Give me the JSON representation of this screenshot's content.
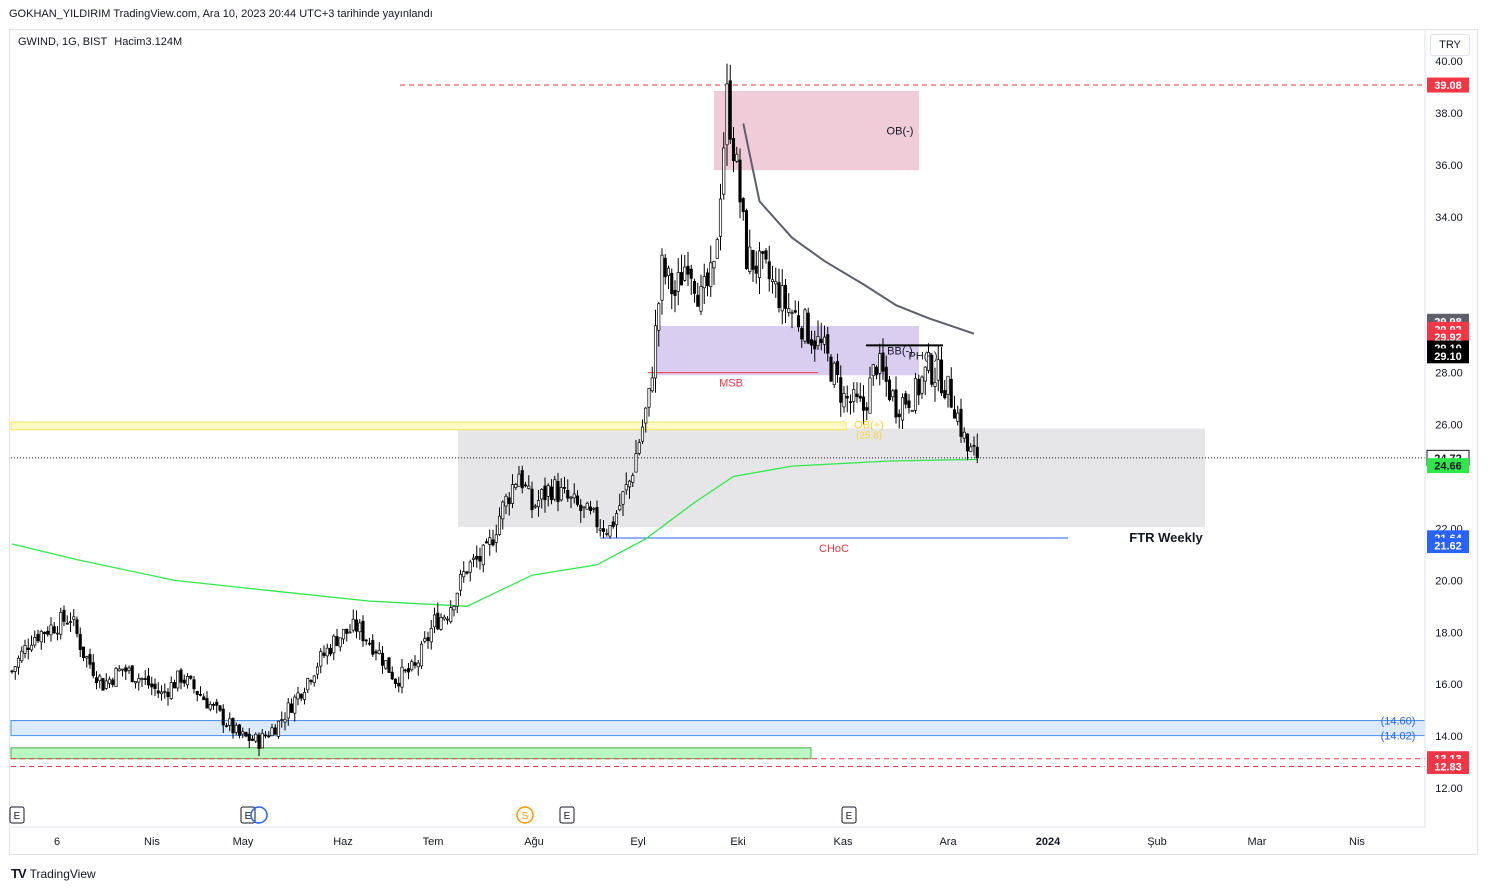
{
  "header": {
    "published_line": "GOKHAN_YILDIRIM TradingView.com, Ara 10, 2023 20:44 UTC+3 tarihinde yayınlandı"
  },
  "legend": {
    "symbol": "GWIND, 1G, BIST",
    "volume": "Hacim3.124M"
  },
  "currency": "TRY",
  "footer": {
    "brand": "TradingView"
  },
  "colors": {
    "up": "#ffffff",
    "down": "#000000",
    "wick": "#000000",
    "ma_fast": "#5d606b",
    "ma_slow": "#2ee84b",
    "ob": "#eec5d4",
    "bb": "#d5c8ee",
    "ftr": "#e3e3e5",
    "resistance": "#f23645",
    "support_band": "#dbeafc",
    "support_green": "#b9f6c1"
  },
  "chart_data": {
    "type": "candlestick",
    "title": "GWIND, 1G, BIST",
    "ylim": [
      10.5,
      41.2
    ],
    "y_ticks": [
      "12.00",
      "14.00",
      "16.00",
      "18.00",
      "20.00",
      "22.00",
      "26.00",
      "28.00",
      "34.00",
      "36.00",
      "38.00",
      "40.00"
    ],
    "x_labels": [
      "6",
      "Nis",
      "May",
      "Haz",
      "Tem",
      "Ağu",
      "Eyl",
      "Eki",
      "Kas",
      "Ara",
      "2024",
      "Şub",
      "Mar",
      "Nis"
    ],
    "earnings_markers": [
      "E",
      "E",
      "E",
      "E"
    ],
    "dividend_marker": "S",
    "close_path": [
      {
        "i": 0,
        "c": 16.5
      },
      {
        "i": 6,
        "c": 17.8
      },
      {
        "i": 12,
        "c": 18.2
      },
      {
        "i": 18,
        "c": 18.6
      },
      {
        "i": 22,
        "c": 17.2
      },
      {
        "i": 28,
        "c": 16.0
      },
      {
        "i": 34,
        "c": 16.6
      },
      {
        "i": 40,
        "c": 16.2
      },
      {
        "i": 46,
        "c": 15.6
      },
      {
        "i": 52,
        "c": 16.3
      },
      {
        "i": 58,
        "c": 15.6
      },
      {
        "i": 64,
        "c": 14.8
      },
      {
        "i": 70,
        "c": 14.0
      },
      {
        "i": 76,
        "c": 13.8
      },
      {
        "i": 82,
        "c": 14.5
      },
      {
        "i": 88,
        "c": 15.6
      },
      {
        "i": 94,
        "c": 16.8
      },
      {
        "i": 100,
        "c": 17.8
      },
      {
        "i": 106,
        "c": 18.2
      },
      {
        "i": 112,
        "c": 17.4
      },
      {
        "i": 118,
        "c": 16.2
      },
      {
        "i": 124,
        "c": 16.6
      },
      {
        "i": 130,
        "c": 18.4
      },
      {
        "i": 134,
        "c": 18.8
      },
      {
        "i": 140,
        "c": 20.5
      },
      {
        "i": 146,
        "c": 21.0
      },
      {
        "i": 150,
        "c": 22.5
      },
      {
        "i": 156,
        "c": 24.2
      },
      {
        "i": 160,
        "c": 22.8
      },
      {
        "i": 166,
        "c": 23.6
      },
      {
        "i": 172,
        "c": 23.0
      },
      {
        "i": 178,
        "c": 22.4
      },
      {
        "i": 184,
        "c": 22.0
      },
      {
        "i": 190,
        "c": 23.8
      },
      {
        "i": 196,
        "c": 27.0
      },
      {
        "i": 200,
        "c": 32.0
      },
      {
        "i": 204,
        "c": 31.0
      },
      {
        "i": 208,
        "c": 32.5
      },
      {
        "i": 212,
        "c": 30.8
      },
      {
        "i": 216,
        "c": 31.8
      },
      {
        "i": 220,
        "c": 38.6
      },
      {
        "i": 223,
        "c": 35.8
      },
      {
        "i": 226,
        "c": 32.5
      },
      {
        "i": 232,
        "c": 31.8
      },
      {
        "i": 238,
        "c": 30.6
      },
      {
        "i": 244,
        "c": 29.8
      },
      {
        "i": 250,
        "c": 28.8
      },
      {
        "i": 256,
        "c": 27.0
      },
      {
        "i": 262,
        "c": 26.6
      },
      {
        "i": 266,
        "c": 28.4
      },
      {
        "i": 272,
        "c": 26.8
      },
      {
        "i": 278,
        "c": 27.2
      },
      {
        "i": 282,
        "c": 28.2
      },
      {
        "i": 286,
        "c": 27.8
      },
      {
        "i": 290,
        "c": 26.8
      },
      {
        "i": 294,
        "c": 25.0
      },
      {
        "i": 297,
        "c": 24.72
      }
    ],
    "ma_fast": [
      {
        "i": 225,
        "v": 37.6
      },
      {
        "i": 230,
        "v": 34.6
      },
      {
        "i": 240,
        "v": 33.2
      },
      {
        "i": 250,
        "v": 32.3
      },
      {
        "i": 262,
        "v": 31.4
      },
      {
        "i": 272,
        "v": 30.6
      },
      {
        "i": 282,
        "v": 30.1
      },
      {
        "i": 296,
        "v": 29.5
      }
    ],
    "ma_slow": [
      {
        "i": 0,
        "v": 21.4
      },
      {
        "i": 20,
        "v": 20.8
      },
      {
        "i": 50,
        "v": 20.0
      },
      {
        "i": 80,
        "v": 19.6
      },
      {
        "i": 110,
        "v": 19.2
      },
      {
        "i": 140,
        "v": 19.0
      },
      {
        "i": 160,
        "v": 20.2
      },
      {
        "i": 180,
        "v": 20.6
      },
      {
        "i": 195,
        "v": 21.6
      },
      {
        "i": 210,
        "v": 23.0
      },
      {
        "i": 222,
        "v": 24.0
      },
      {
        "i": 240,
        "v": 24.4
      },
      {
        "i": 270,
        "v": 24.6
      },
      {
        "i": 297,
        "v": 24.66
      }
    ],
    "zones": [
      {
        "label": "OB(-)",
        "top": 38.85,
        "bottom": 35.8
      },
      {
        "label": "BB(-)",
        "top": 29.8,
        "bottom": 27.9
      },
      {
        "label": "FTR Weekly",
        "top": 25.85,
        "bottom": 22.05
      }
    ],
    "annotations": [
      {
        "label": "MSB",
        "price": 28.0
      },
      {
        "label": "PH(+)",
        "price": 29.05
      },
      {
        "label": "CHoC",
        "price": 21.63
      },
      {
        "label": "OB(+)",
        "sublabel": "(25.8)",
        "price": 26.0
      },
      {
        "label": "(14.60)",
        "price": 14.6
      },
      {
        "label": "(14.02)",
        "price": 14.02
      }
    ],
    "price_labels": [
      {
        "value": "39.08",
        "bg": "#f23645",
        "fg": "#ffffff"
      },
      {
        "value": "29.98",
        "bg": "#5d606b",
        "fg": "#ffffff"
      },
      {
        "value": "29.92",
        "bg": "#f23645",
        "fg": "#ffffff"
      },
      {
        "value": "29.92",
        "bg": "#f23645",
        "fg": "#ffffff"
      },
      {
        "value": "29.10",
        "bg": "#000000",
        "fg": "#ffffff"
      },
      {
        "value": "29.10",
        "bg": "#000000",
        "fg": "#ffffff"
      },
      {
        "value": "24.72",
        "bg": "#ffffff",
        "fg": "#131722"
      },
      {
        "value": "24.66",
        "bg": "#2ee84b",
        "fg": "#131722"
      },
      {
        "value": "21.64",
        "bg": "#2962ff",
        "fg": "#ffffff"
      },
      {
        "value": "21.62",
        "bg": "#2962ff",
        "fg": "#ffffff"
      },
      {
        "value": "13.13",
        "bg": "#f23645",
        "fg": "#ffffff"
      },
      {
        "value": "12.83",
        "bg": "#f23645",
        "fg": "#ffffff"
      }
    ],
    "last_close": 24.72
  }
}
